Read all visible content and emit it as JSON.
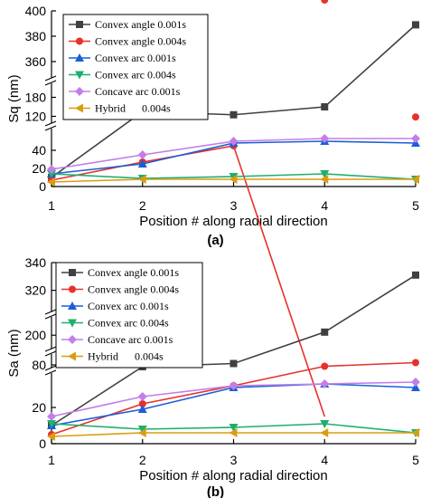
{
  "chart_data": [
    {
      "type": "line",
      "caption": "(a)",
      "xlabel": "Position # along radial direction",
      "ylabel": "Sq (nm)",
      "x": [
        1,
        2,
        3,
        4,
        5
      ],
      "xlim": [
        1,
        5
      ],
      "broken_axis": [
        {
          "range": [
            0,
            60
          ],
          "ticks": [
            0,
            20,
            40
          ]
        },
        {
          "range": [
            110,
            190
          ],
          "ticks": [
            120,
            180
          ]
        },
        {
          "range": [
            350,
            400
          ],
          "ticks": [
            360,
            380,
            400
          ]
        }
      ],
      "legend_position": "top-left",
      "grid": false,
      "series": [
        {
          "name": "Convex angle 0.001s",
          "color": "#404040",
          "marker": "square",
          "values": [
            10,
            135,
            125,
            150,
            389
          ]
        },
        {
          "name": "Convex angle 0.004s",
          "color": "#e8302a",
          "marker": "circle",
          "values": [
            7,
            27,
            45,
            100,
            118
          ]
        },
        {
          "name": "Convex arc 0.001s",
          "color": "#1a5fd6",
          "marker": "triangle-up",
          "values": [
            14,
            25,
            48,
            50,
            48
          ]
        },
        {
          "name": "Convex arc 0.004s",
          "color": "#1fae6e",
          "marker": "triangle-down",
          "values": [
            14,
            9,
            11,
            14,
            8
          ]
        },
        {
          "name": "Concave arc 0.001s",
          "color": "#c37ee8",
          "marker": "diamond",
          "values": [
            19,
            35,
            50,
            53,
            53
          ]
        },
        {
          "name": "Hybrid      0.004s",
          "color": "#d99d12",
          "marker": "triangle-left",
          "values": [
            5,
            8,
            8,
            8,
            8
          ]
        }
      ]
    },
    {
      "type": "line",
      "caption": "(b)",
      "xlabel": "Position # along radial direction",
      "ylabel": "Sa (nm)",
      "x": [
        1,
        2,
        3,
        4,
        5
      ],
      "xlim": [
        1,
        5
      ],
      "broken_axis": [
        {
          "range": [
            0,
            40
          ],
          "ticks": [
            0,
            20
          ]
        },
        {
          "range": [
            70,
            90
          ],
          "ticks": [
            80
          ]
        },
        {
          "range": [
            190,
            215
          ],
          "ticks": [
            200
          ]
        },
        {
          "range": [
            310,
            340
          ],
          "ticks": [
            320,
            340
          ]
        }
      ],
      "legend_position": "top-left",
      "grid": false,
      "series": [
        {
          "name": "Convex angle 0.001s",
          "color": "#404040",
          "marker": "square",
          "values": [
            10,
            76,
            83,
            205,
            331
          ]
        },
        {
          "name": "Convex angle 0.004s",
          "color": "#e8302a",
          "marker": "circle",
          "values": [
            5,
            22,
            32,
            77,
            85
          ]
        },
        {
          "name": "Convex arc 0.001s",
          "color": "#1a5fd6",
          "marker": "triangle-up",
          "values": [
            10,
            19,
            31,
            33,
            31
          ]
        },
        {
          "name": "Convex arc 0.004s",
          "color": "#1fae6e",
          "marker": "triangle-down",
          "values": [
            11,
            8,
            9,
            11,
            6
          ]
        },
        {
          "name": "Concave arc 0.001s",
          "color": "#c37ee8",
          "marker": "diamond",
          "values": [
            15,
            26,
            32,
            33,
            34
          ]
        },
        {
          "name": "Hybrid      0.004s",
          "color": "#d99d12",
          "marker": "triangle-left",
          "values": [
            4,
            6,
            6,
            6,
            6
          ]
        }
      ]
    }
  ]
}
